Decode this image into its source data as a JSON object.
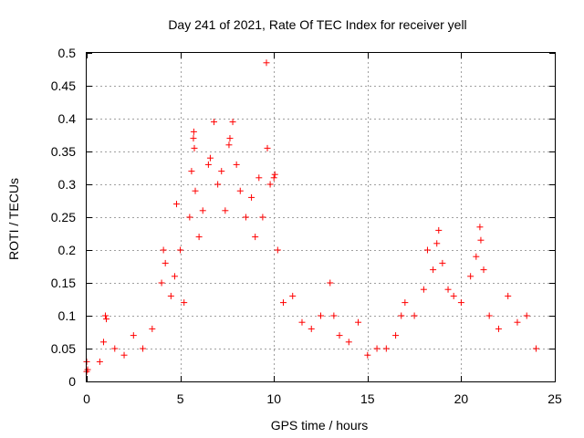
{
  "chart_data": {
    "type": "scatter",
    "title": "Day 241 of 2021, Rate Of TEC Index for receiver yell",
    "xlabel": "GPS time / hours",
    "ylabel": "ROTI / TECUs",
    "xlim": [
      0,
      25
    ],
    "ylim": [
      0,
      0.5
    ],
    "x_ticks": [
      0,
      5,
      10,
      15,
      20,
      25
    ],
    "y_ticks": [
      0,
      0.05,
      0.1,
      0.15,
      0.2,
      0.25,
      0.3,
      0.35,
      0.4,
      0.45,
      0.5
    ],
    "x_tick_labels": [
      "0",
      "5",
      "10",
      "15",
      "20",
      "25"
    ],
    "y_tick_labels": [
      "0",
      "0.05",
      "0.1",
      "0.15",
      "0.2",
      "0.25",
      "0.3",
      "0.35",
      "0.4",
      "0.45",
      "0.5"
    ],
    "grid": true,
    "marker": "+",
    "series": [
      {
        "name": "ROTI",
        "color": "#ff0000",
        "points": [
          [
            0.0,
            0.015
          ],
          [
            0.0,
            0.03
          ],
          [
            0.05,
            0.018
          ],
          [
            0.7,
            0.03
          ],
          [
            0.9,
            0.06
          ],
          [
            1.0,
            0.1
          ],
          [
            1.05,
            0.095
          ],
          [
            1.5,
            0.05
          ],
          [
            2.0,
            0.04
          ],
          [
            2.5,
            0.07
          ],
          [
            3.0,
            0.05
          ],
          [
            3.5,
            0.08
          ],
          [
            4.0,
            0.15
          ],
          [
            4.1,
            0.2
          ],
          [
            4.2,
            0.18
          ],
          [
            4.5,
            0.13
          ],
          [
            4.7,
            0.16
          ],
          [
            4.8,
            0.27
          ],
          [
            5.0,
            0.2
          ],
          [
            5.2,
            0.12
          ],
          [
            5.5,
            0.25
          ],
          [
            5.6,
            0.32
          ],
          [
            5.7,
            0.37
          ],
          [
            5.72,
            0.38
          ],
          [
            5.75,
            0.355
          ],
          [
            5.8,
            0.29
          ],
          [
            6.0,
            0.22
          ],
          [
            6.2,
            0.26
          ],
          [
            6.5,
            0.33
          ],
          [
            6.6,
            0.34
          ],
          [
            6.8,
            0.395
          ],
          [
            7.0,
            0.3
          ],
          [
            7.2,
            0.32
          ],
          [
            7.4,
            0.26
          ],
          [
            7.6,
            0.36
          ],
          [
            7.65,
            0.37
          ],
          [
            7.8,
            0.395
          ],
          [
            8.0,
            0.33
          ],
          [
            8.2,
            0.29
          ],
          [
            8.5,
            0.25
          ],
          [
            8.8,
            0.28
          ],
          [
            9.0,
            0.22
          ],
          [
            9.2,
            0.31
          ],
          [
            9.4,
            0.25
          ],
          [
            9.6,
            0.485
          ],
          [
            9.65,
            0.355
          ],
          [
            9.8,
            0.3
          ],
          [
            10.0,
            0.31
          ],
          [
            10.05,
            0.315
          ],
          [
            10.2,
            0.2
          ],
          [
            10.5,
            0.12
          ],
          [
            11.0,
            0.13
          ],
          [
            11.5,
            0.09
          ],
          [
            12.0,
            0.08
          ],
          [
            12.5,
            0.1
          ],
          [
            13.0,
            0.15
          ],
          [
            13.2,
            0.1
          ],
          [
            13.5,
            0.07
          ],
          [
            14.0,
            0.06
          ],
          [
            14.5,
            0.09
          ],
          [
            15.0,
            0.04
          ],
          [
            15.5,
            0.05
          ],
          [
            16.0,
            0.05
          ],
          [
            16.5,
            0.07
          ],
          [
            16.8,
            0.1
          ],
          [
            17.0,
            0.12
          ],
          [
            17.5,
            0.1
          ],
          [
            18.0,
            0.14
          ],
          [
            18.2,
            0.2
          ],
          [
            18.5,
            0.17
          ],
          [
            18.7,
            0.21
          ],
          [
            18.8,
            0.23
          ],
          [
            19.0,
            0.18
          ],
          [
            19.3,
            0.14
          ],
          [
            19.6,
            0.13
          ],
          [
            20.0,
            0.12
          ],
          [
            20.5,
            0.16
          ],
          [
            20.8,
            0.19
          ],
          [
            21.0,
            0.235
          ],
          [
            21.05,
            0.215
          ],
          [
            21.2,
            0.17
          ],
          [
            21.5,
            0.1
          ],
          [
            22.0,
            0.08
          ],
          [
            22.5,
            0.13
          ],
          [
            23.0,
            0.09
          ],
          [
            23.5,
            0.1
          ],
          [
            24.0,
            0.05
          ]
        ]
      }
    ]
  }
}
